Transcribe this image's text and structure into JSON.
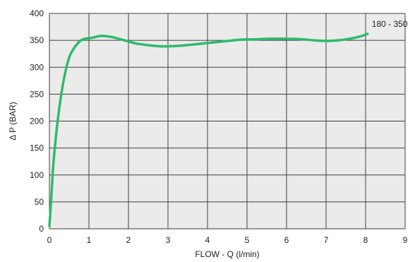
{
  "chart_data": {
    "type": "line",
    "title": "",
    "xlabel": "FLOW - Q (l/min)",
    "ylabel": "Δ  P (BAR)",
    "xlim": [
      0,
      9
    ],
    "ylim": [
      0,
      400
    ],
    "x_ticks": [
      "0",
      "1",
      "2",
      "3",
      "4",
      "5",
      "6",
      "7",
      "8",
      "9"
    ],
    "y_ticks": [
      "0",
      "50",
      "100",
      "150",
      "200",
      "250",
      "300",
      "350",
      "400"
    ],
    "grid": true,
    "legend": "none",
    "annotation": "180 - 350",
    "colors": {
      "plot_background": "#ebebeb",
      "grid": "#3f3f3f",
      "line": "#2dbb6b"
    },
    "series": [
      {
        "x": [
          0.0,
          0.05,
          0.1,
          0.2,
          0.3,
          0.4,
          0.5,
          0.6,
          0.7,
          0.8,
          0.9,
          1.0,
          1.1,
          1.2,
          1.3,
          1.4,
          1.5,
          1.6,
          1.8,
          2.0,
          2.2,
          2.5,
          2.8,
          3.0,
          3.3,
          3.6,
          4.0,
          4.4,
          4.8,
          5.2,
          5.6,
          6.0,
          6.4,
          6.7,
          7.0,
          7.3,
          7.6,
          7.9,
          8.05
        ],
        "y": [
          5,
          60,
          120,
          195,
          250,
          290,
          318,
          333,
          343,
          350,
          353,
          354,
          355,
          357,
          358,
          358,
          357,
          356,
          352,
          348,
          344,
          341,
          339,
          339,
          340,
          342,
          345,
          348,
          351,
          352,
          353,
          353,
          352,
          350,
          349,
          350,
          353,
          358,
          362
        ]
      }
    ]
  }
}
